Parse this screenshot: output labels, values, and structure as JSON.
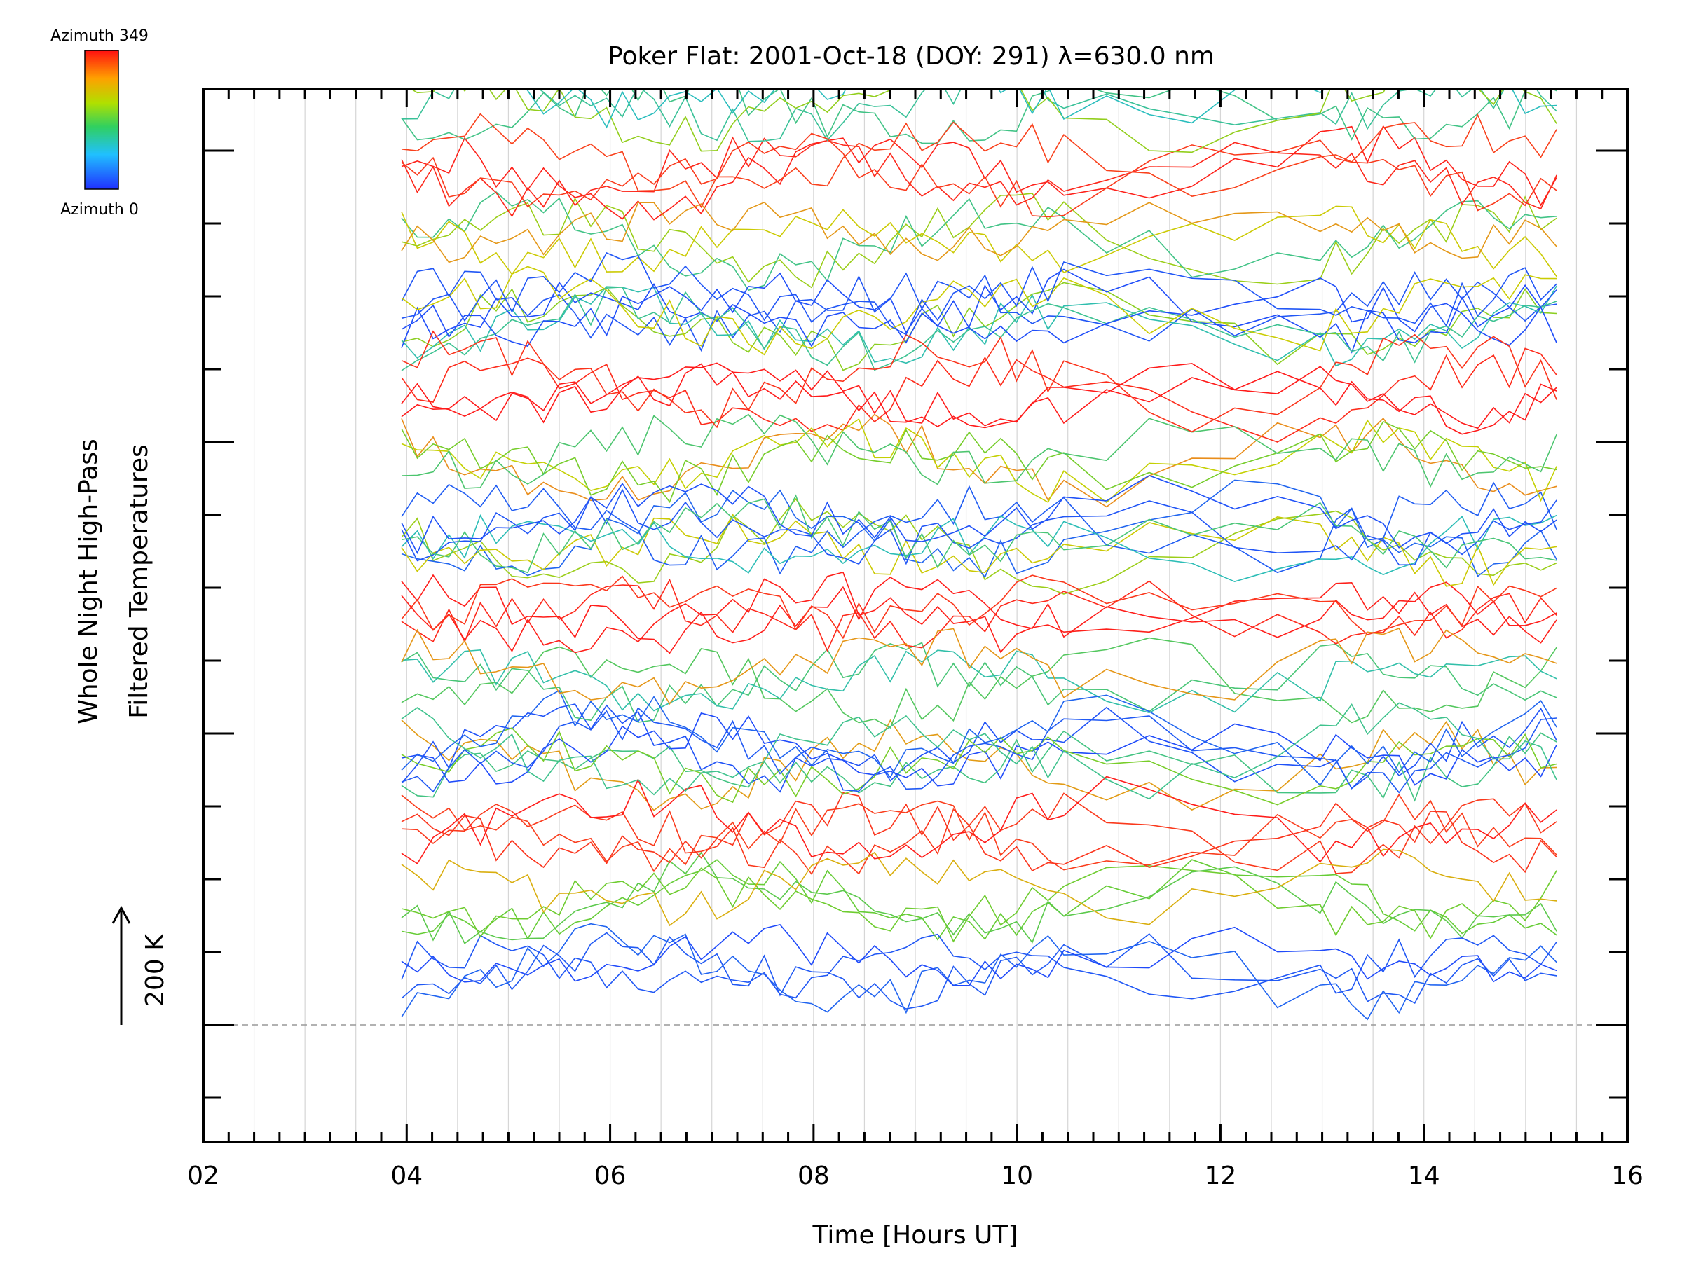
{
  "chart_data": {
    "type": "line",
    "title": "Poker Flat: 2001-Oct-18 (DOY: 291) λ=630.0 nm",
    "xlabel": "Time [Hours UT]",
    "ylabel": "Whole Night High-Pass Filtered Temperatures",
    "ylabel_lines": [
      "Whole Night High-Pass",
      "Filtered Temperatures"
    ],
    "scale_label": "200 K",
    "xlim": [
      2,
      16
    ],
    "x_ticks": [
      "02",
      "04",
      "06",
      "08",
      "10",
      "12",
      "14",
      "16"
    ],
    "data_time_range": [
      3.95,
      15.45
    ],
    "grid": "vertical lines every 0.5 h",
    "series_count": 64,
    "offset_between_series_K": 50,
    "colorbar": {
      "top_label": "Azimuth 349",
      "bottom_label": "Azimuth 0",
      "colormap": "rainbow: blue (0) - cyan - green - yellow - orange - red (349)"
    },
    "colors": {
      "blue": "#1f3fff",
      "cyan": "#22bbcc",
      "green": "#66cc33",
      "yellow": "#c8d000",
      "orange": "#f08020",
      "red": "#ff1a1a"
    },
    "note_reference_line": "dashed baseline"
  }
}
